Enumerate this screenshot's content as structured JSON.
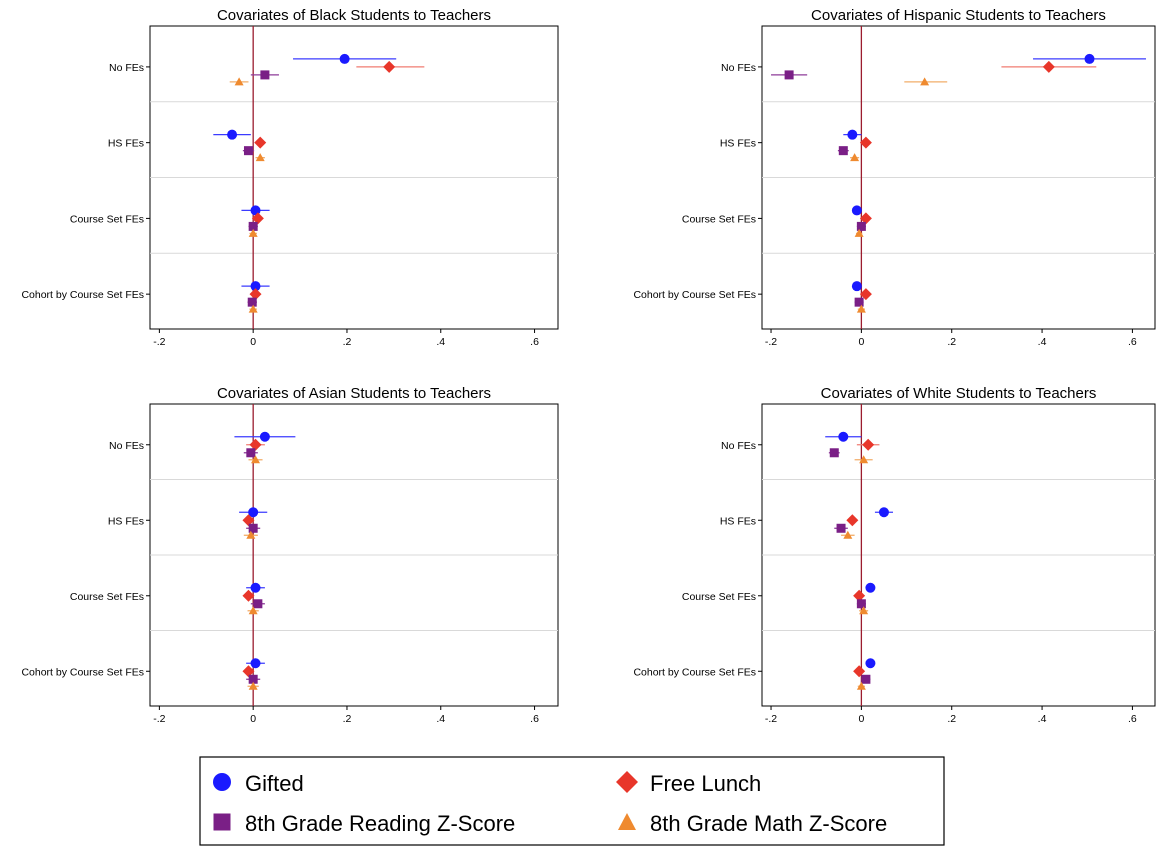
{
  "chart_data": [
    {
      "type": "scatter",
      "title": "Covariates of Black Students to Teachers",
      "xlabel": "",
      "ylabel": "",
      "xlim": [
        -0.22,
        0.65
      ],
      "xticks": [
        "-.2",
        "0",
        ".2",
        ".4",
        ".6"
      ],
      "xtick_values": [
        -0.2,
        0,
        0.2,
        0.4,
        0.6
      ],
      "categories": [
        "No FEs",
        "HS FEs",
        "Course Set FEs",
        "Cohort by Course Set FEs"
      ],
      "reference_line": 0,
      "series": [
        {
          "name": "Gifted",
          "values": [
            0.195,
            -0.045,
            0.005,
            0.005
          ],
          "ci": [
            [
              0.085,
              0.305
            ],
            [
              -0.085,
              -0.005
            ],
            [
              -0.025,
              0.035
            ],
            [
              -0.025,
              0.035
            ]
          ]
        },
        {
          "name": "Free Lunch",
          "values": [
            0.29,
            0.015,
            0.01,
            0.005
          ],
          "ci": [
            [
              0.22,
              0.365
            ],
            [
              0.008,
              0.022
            ],
            [
              0.0,
              0.02
            ],
            [
              -0.005,
              0.015
            ]
          ]
        },
        {
          "name": "8th Grade Reading Z-Score",
          "values": [
            0.025,
            -0.01,
            0.0,
            -0.002
          ],
          "ci": [
            [
              -0.005,
              0.055
            ],
            [
              -0.022,
              0.002
            ],
            [
              -0.01,
              0.01
            ],
            [
              -0.012,
              0.008
            ]
          ]
        },
        {
          "name": "8th Grade Math Z-Score",
          "values": [
            -0.03,
            0.015,
            0.0,
            0.0
          ],
          "ci": [
            [
              -0.05,
              -0.01
            ],
            [
              0.005,
              0.025
            ],
            [
              -0.008,
              0.008
            ],
            [
              -0.008,
              0.008
            ]
          ]
        }
      ]
    },
    {
      "type": "scatter",
      "title": "Covariates of Hispanic Students to Teachers",
      "xlabel": "",
      "ylabel": "",
      "xlim": [
        -0.22,
        0.65
      ],
      "xticks": [
        "-.2",
        "0",
        ".2",
        ".4",
        ".6"
      ],
      "xtick_values": [
        -0.2,
        0,
        0.2,
        0.4,
        0.6
      ],
      "categories": [
        "No FEs",
        "HS FEs",
        "Course Set FEs",
        "Cohort by Course Set FEs"
      ],
      "reference_line": 0,
      "series": [
        {
          "name": "Gifted",
          "values": [
            0.505,
            -0.02,
            -0.01,
            -0.01
          ],
          "ci": [
            [
              0.38,
              0.63
            ],
            [
              -0.04,
              0.0
            ],
            [
              -0.02,
              0.0
            ],
            [
              -0.02,
              0.0
            ]
          ]
        },
        {
          "name": "Free Lunch",
          "values": [
            0.415,
            0.01,
            0.01,
            0.01
          ],
          "ci": [
            [
              0.31,
              0.52
            ],
            [
              0.0,
              0.02
            ],
            [
              0.0,
              0.02
            ],
            [
              0.0,
              0.02
            ]
          ]
        },
        {
          "name": "8th Grade Reading Z-Score",
          "values": [
            -0.16,
            -0.04,
            0.0,
            -0.005
          ],
          "ci": [
            [
              -0.2,
              -0.12
            ],
            [
              -0.052,
              -0.028
            ],
            [
              -0.01,
              0.01
            ],
            [
              -0.015,
              0.005
            ]
          ]
        },
        {
          "name": "8th Grade Math Z-Score",
          "values": [
            0.14,
            -0.015,
            -0.005,
            0.0
          ],
          "ci": [
            [
              0.095,
              0.19
            ],
            [
              -0.025,
              -0.005
            ],
            [
              -0.012,
              0.002
            ],
            [
              -0.008,
              0.008
            ]
          ]
        }
      ]
    },
    {
      "type": "scatter",
      "title": "Covariates of Asian Students to Teachers",
      "xlabel": "",
      "ylabel": "",
      "xlim": [
        -0.22,
        0.65
      ],
      "xticks": [
        "-.2",
        "0",
        ".2",
        ".4",
        ".6"
      ],
      "xtick_values": [
        -0.2,
        0,
        0.2,
        0.4,
        0.6
      ],
      "categories": [
        "No FEs",
        "HS FEs",
        "Course Set FEs",
        "Cohort by Course Set FEs"
      ],
      "reference_line": 0,
      "series": [
        {
          "name": "Gifted",
          "values": [
            0.025,
            0.0,
            0.005,
            0.005
          ],
          "ci": [
            [
              -0.04,
              0.09
            ],
            [
              -0.03,
              0.03
            ],
            [
              -0.015,
              0.025
            ],
            [
              -0.015,
              0.025
            ]
          ]
        },
        {
          "name": "Free Lunch",
          "values": [
            0.005,
            -0.01,
            -0.01,
            -0.01
          ],
          "ci": [
            [
              -0.015,
              0.025
            ],
            [
              -0.02,
              0.0
            ],
            [
              -0.02,
              0.0
            ],
            [
              -0.02,
              0.0
            ]
          ]
        },
        {
          "name": "8th Grade Reading Z-Score",
          "values": [
            -0.005,
            0.0,
            0.01,
            0.0
          ],
          "ci": [
            [
              -0.02,
              0.01
            ],
            [
              -0.015,
              0.015
            ],
            [
              -0.005,
              0.025
            ],
            [
              -0.015,
              0.015
            ]
          ]
        },
        {
          "name": "8th Grade Math Z-Score",
          "values": [
            0.005,
            -0.005,
            0.0,
            0.0
          ],
          "ci": [
            [
              -0.01,
              0.02
            ],
            [
              -0.02,
              0.01
            ],
            [
              -0.012,
              0.012
            ],
            [
              -0.012,
              0.012
            ]
          ]
        }
      ]
    },
    {
      "type": "scatter",
      "title": "Covariates of White Students to Teachers",
      "xlabel": "",
      "ylabel": "",
      "xlim": [
        -0.22,
        0.65
      ],
      "xticks": [
        "-.2",
        "0",
        ".2",
        ".4",
        ".6"
      ],
      "xtick_values": [
        -0.2,
        0,
        0.2,
        0.4,
        0.6
      ],
      "categories": [
        "No FEs",
        "HS FEs",
        "Course Set FEs",
        "Cohort by Course Set FEs"
      ],
      "reference_line": 0,
      "series": [
        {
          "name": "Gifted",
          "values": [
            -0.04,
            0.05,
            0.02,
            0.02
          ],
          "ci": [
            [
              -0.08,
              0.0
            ],
            [
              0.03,
              0.07
            ],
            [
              0.01,
              0.03
            ],
            [
              0.01,
              0.03
            ]
          ]
        },
        {
          "name": "Free Lunch",
          "values": [
            0.015,
            -0.02,
            -0.005,
            -0.005
          ],
          "ci": [
            [
              -0.01,
              0.04
            ],
            [
              -0.03,
              -0.01
            ],
            [
              -0.015,
              0.005
            ],
            [
              -0.015,
              0.005
            ]
          ]
        },
        {
          "name": "8th Grade Reading Z-Score",
          "values": [
            -0.06,
            -0.045,
            0.0,
            0.01
          ],
          "ci": [
            [
              -0.072,
              -0.048
            ],
            [
              -0.06,
              -0.03
            ],
            [
              -0.01,
              0.01
            ],
            [
              0.0,
              0.02
            ]
          ]
        },
        {
          "name": "8th Grade Math Z-Score",
          "values": [
            0.005,
            -0.03,
            0.005,
            0.0
          ],
          "ci": [
            [
              -0.015,
              0.025
            ],
            [
              -0.045,
              -0.015
            ],
            [
              -0.005,
              0.015
            ],
            [
              -0.008,
              0.008
            ]
          ]
        }
      ]
    }
  ],
  "legend": {
    "placement": "bottom",
    "entries": [
      {
        "label": "Gifted",
        "marker": "circle",
        "color": "#1a1aff"
      },
      {
        "label": "Free Lunch",
        "marker": "diamond",
        "color": "#e8362a"
      },
      {
        "label": "8th Grade Reading Z-Score",
        "marker": "square",
        "color": "#7a1f86"
      },
      {
        "label": "8th Grade Math Z-Score",
        "marker": "triangle",
        "color": "#ef8a2f"
      }
    ]
  },
  "colors": {
    "gifted": "#1a1aff",
    "gifted_ci": "#3b3bff",
    "free_lunch": "#e8362a",
    "free_lunch_ci": "#f07c72",
    "reading": "#7a1f86",
    "reading_ci": "#8e3b99",
    "math": "#ef8a2f",
    "math_ci": "#f2ad6a",
    "reference_line": "#9b1c2e",
    "separator": "#d9d9d9"
  }
}
